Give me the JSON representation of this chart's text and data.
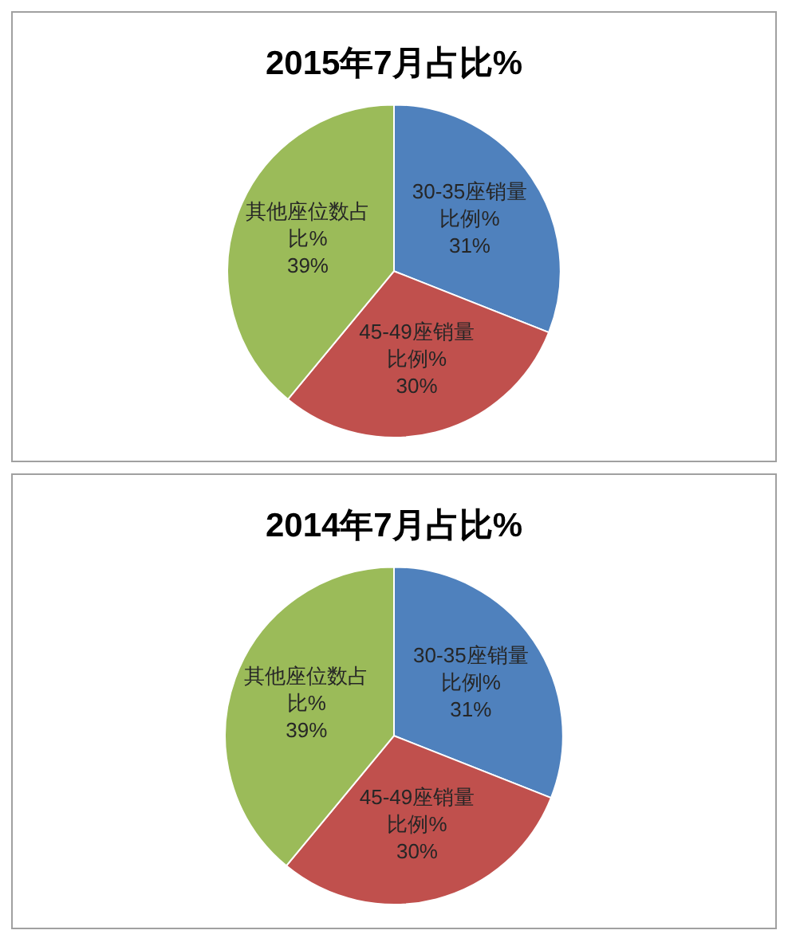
{
  "chart_data": [
    {
      "type": "pie",
      "title": "2015年7月占比%",
      "categories": [
        "30-35座销量比例%",
        "45-49座销量比例%",
        "其他座位数占比%"
      ],
      "values": [
        31,
        30,
        39
      ],
      "colors": [
        "#4f81bd",
        "#c0504d",
        "#9bbb59"
      ],
      "value_labels": [
        "31%",
        "30%",
        "39%"
      ]
    },
    {
      "type": "pie",
      "title": "2014年7月占比%",
      "categories": [
        "30-35座销量比例%",
        "45-49座销量比例%",
        "其他座位数占比%"
      ],
      "values": [
        31,
        30,
        39
      ],
      "colors": [
        "#4f81bd",
        "#c0504d",
        "#9bbb59"
      ],
      "value_labels": [
        "31%",
        "30%",
        "39%"
      ]
    }
  ]
}
